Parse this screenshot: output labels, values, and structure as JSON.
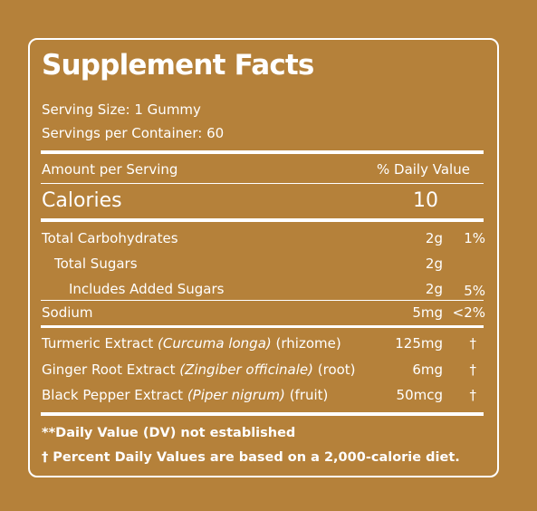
{
  "panel": {
    "title": "Supplement Facts",
    "serving_size": "Serving Size: 1 Gummy",
    "servings_per_container": "Servings per Container: 60"
  },
  "header": {
    "amount_per_serving": "Amount per Serving",
    "daily_value": "% Daily Value"
  },
  "calories": {
    "label": "Calories",
    "value": "10"
  },
  "nutrients": [
    {
      "name": "Total Carbohydrates",
      "amount": "2g",
      "dv": "1%"
    },
    {
      "name": "Total Sugars",
      "amount": "2g",
      "dv": ""
    },
    {
      "name": "Includes Added Sugars",
      "amount": "2g",
      "dv": "5%"
    },
    {
      "name": "Sodium",
      "amount": "5mg",
      "dv": "<2%"
    }
  ],
  "extracts": [
    {
      "name": "Turmeric Extract",
      "latin": "(Curcuma longa)",
      "part": "(rhizome)",
      "amount": "125mg",
      "dv": "†"
    },
    {
      "name": "Ginger Root Extract",
      "latin": "(Zingiber officinale)",
      "part": "(root)",
      "amount": "6mg",
      "dv": "†"
    },
    {
      "name": "Black Pepper Extract",
      "latin": "(Piper nigrum)",
      "part": "(fruit)",
      "amount": "50mcg",
      "dv": "†"
    }
  ],
  "footnotes": {
    "dv_not_established": "**Daily Value (DV) not established",
    "percent_basis": "† Percent Daily Values are based on a 2,000-calorie diet."
  },
  "colors": {
    "background": "#B5813A",
    "foreground": "#FFFFFF"
  }
}
